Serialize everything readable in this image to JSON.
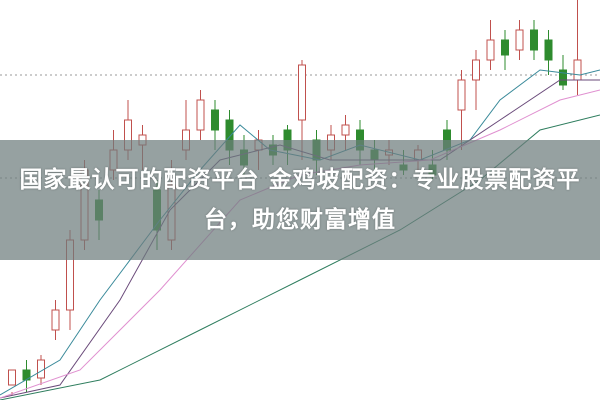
{
  "headline": "国家最认可的配资平台 金鸡坡配资：专业股票配资平台，助您财富增值",
  "colors": {
    "up": "#c0504d",
    "down": "#2e8b2e",
    "overlay": "#6e7d7d",
    "ma_short": "#3a8a9a",
    "ma_mid": "#6a4a7a",
    "ma_long": "#2e7d5e",
    "ma_pink": "#e090d0"
  }
}
